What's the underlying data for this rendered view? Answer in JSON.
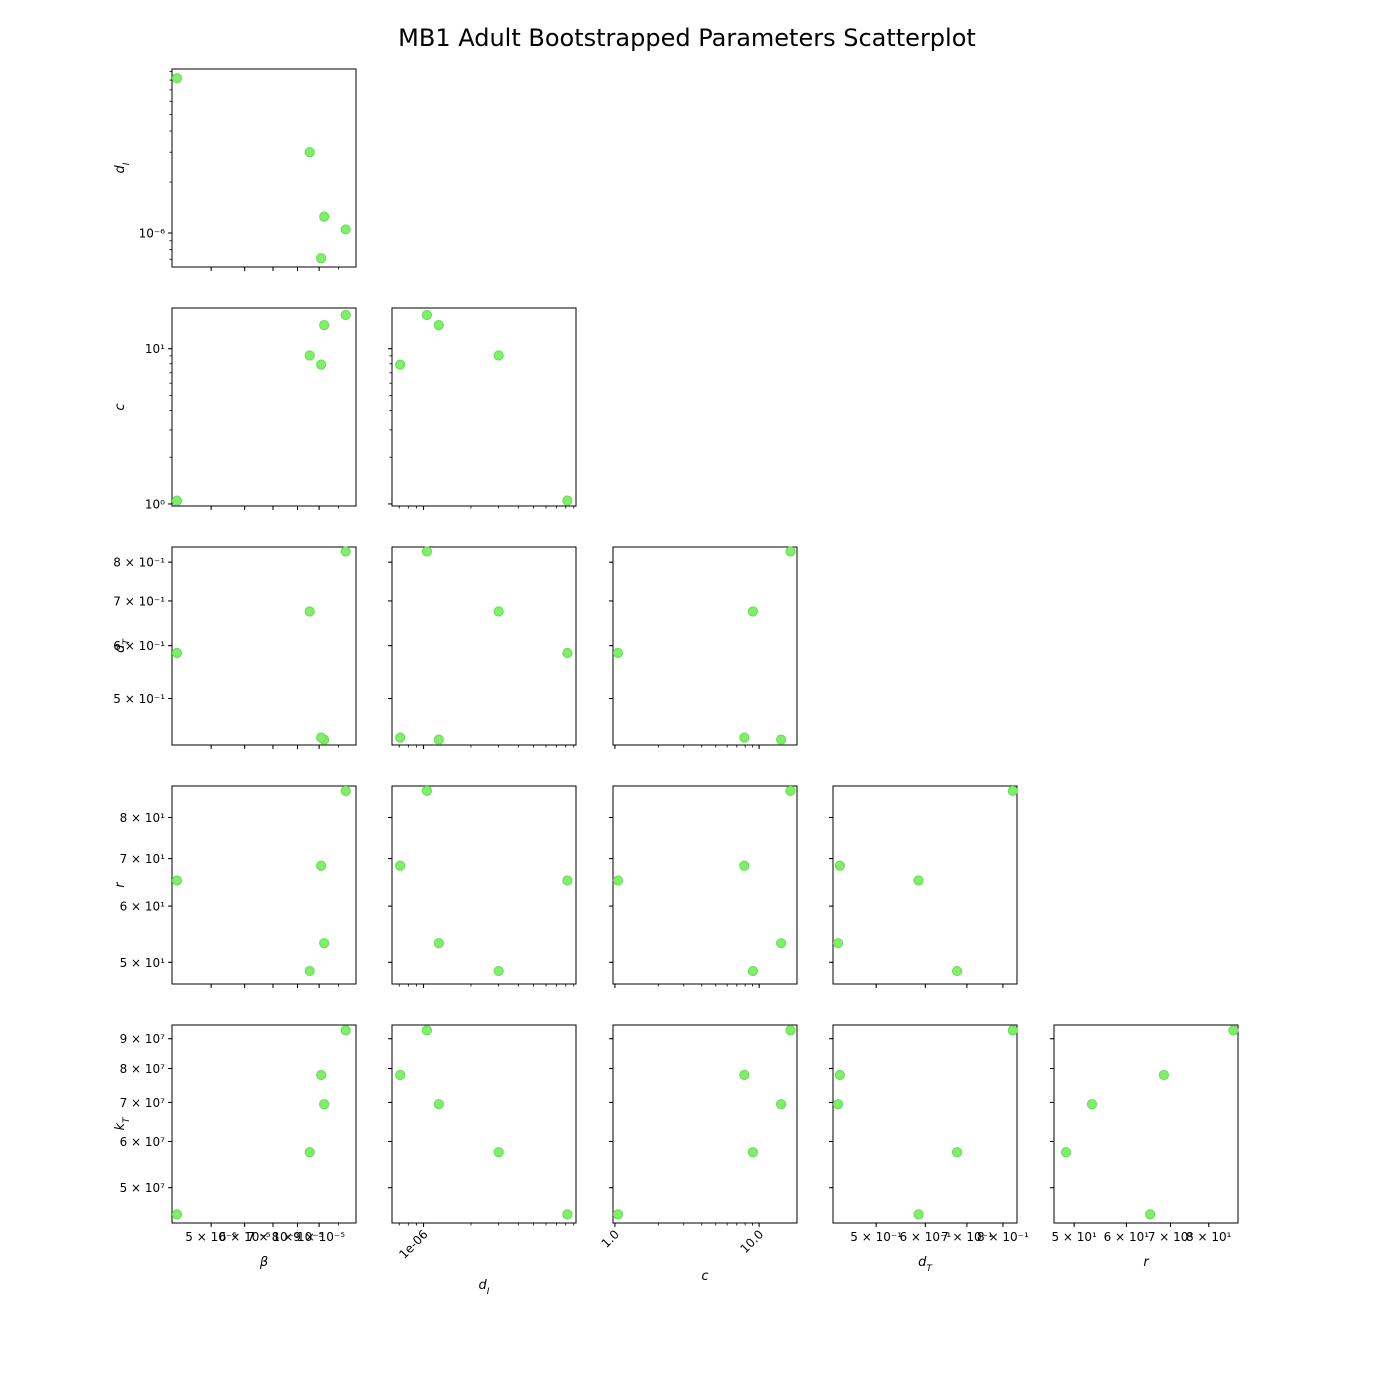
{
  "figure": {
    "title": "MB1 Adult Bootstrapped Parameters Scatterplot",
    "point_color": "#7fef6a",
    "point_edge_color": "#5fd64c"
  },
  "chart_data": {
    "type": "scatter",
    "title": "MB1 Adult Bootstrapped Parameters Scatterplot",
    "variables": [
      {
        "key": "beta",
        "label": "β",
        "scale": "log",
        "lim": [
          4.04e-05,
          0.00011
        ],
        "ticks": [
          {
            "v": 5e-05,
            "text": "5 × 10⁻⁵"
          },
          {
            "v": 6e-05,
            "text": "6 × 10⁻⁵"
          },
          {
            "v": 7e-05,
            "text": "7 × 10⁻⁵"
          },
          {
            "v": 8e-05,
            "text": "8 × 10⁻⁵"
          },
          {
            "v": 9e-05,
            "text": "9 × 10⁻⁵"
          }
        ]
      },
      {
        "key": "dI",
        "label": "dI",
        "scale": "log",
        "lim": [
          6.3e-07,
          9.3e-06
        ],
        "ticks": [
          {
            "v": 1e-06,
            "text": "10⁻⁶"
          }
        ],
        "xticks": [
          {
            "v": 1e-06,
            "text": "1e-06"
          }
        ]
      },
      {
        "key": "c",
        "label": "c",
        "scale": "log",
        "lim": [
          0.97,
          18.3
        ],
        "ticks": [
          {
            "v": 1,
            "text": "10⁰"
          },
          {
            "v": 10,
            "text": "10¹"
          }
        ],
        "xticks": [
          {
            "v": 1,
            "text": "1.0"
          },
          {
            "v": 10,
            "text": "10.0"
          }
        ]
      },
      {
        "key": "dT",
        "label": "dT",
        "scale": "log",
        "lim": [
          0.426,
          0.843
        ],
        "ticks": [
          {
            "v": 0.5,
            "text": "5 × 10⁻¹"
          },
          {
            "v": 0.6,
            "text": "6 × 10⁻¹"
          },
          {
            "v": 0.7,
            "text": "7 × 10⁻¹"
          },
          {
            "v": 0.8,
            "text": "8 × 10⁻¹"
          }
        ]
      },
      {
        "key": "r",
        "label": "r",
        "scale": "log",
        "lim": [
          46.6,
          88.6
        ],
        "ticks": [
          {
            "v": 50,
            "text": "5 × 10¹"
          },
          {
            "v": 60,
            "text": "6 × 10¹"
          },
          {
            "v": 70,
            "text": "7 × 10¹"
          },
          {
            "v": 80,
            "text": "8 × 10¹"
          }
        ]
      },
      {
        "key": "kT",
        "label": "kT",
        "scale": "log",
        "lim": [
          43500000.0,
          95000000.0
        ],
        "ticks": [
          {
            "v": 50000000.0,
            "text": "5 × 10⁷"
          },
          {
            "v": 60000000.0,
            "text": "6 × 10⁷"
          },
          {
            "v": 70000000.0,
            "text": "7 × 10⁷"
          },
          {
            "v": 80000000.0,
            "text": "8 × 10⁷"
          },
          {
            "v": 90000000.0,
            "text": "9 × 10⁷"
          }
        ]
      }
    ],
    "points": [
      {
        "beta": 4.15e-05,
        "dI": 8.2e-06,
        "c": 1.05,
        "dT": 0.585,
        "r": 65.2,
        "kT": 45000000.0
      },
      {
        "beta": 8.55e-05,
        "dI": 3e-06,
        "c": 9.05,
        "dT": 0.675,
        "r": 48.6,
        "kT": 57500000.0
      },
      {
        "beta": 9.25e-05,
        "dI": 1.25e-06,
        "c": 14.2,
        "dT": 0.434,
        "r": 53.2,
        "kT": 69500000.0
      },
      {
        "beta": 0.000104,
        "dI": 1.05e-06,
        "c": 16.5,
        "dT": 0.83,
        "r": 87.2,
        "kT": 93000000.0
      },
      {
        "beta": 9.1e-05,
        "dI": 7.1e-07,
        "c": 7.9,
        "dT": 0.437,
        "r": 68.4,
        "kT": 78000000.0
      }
    ],
    "grid": false,
    "legend": "none"
  }
}
